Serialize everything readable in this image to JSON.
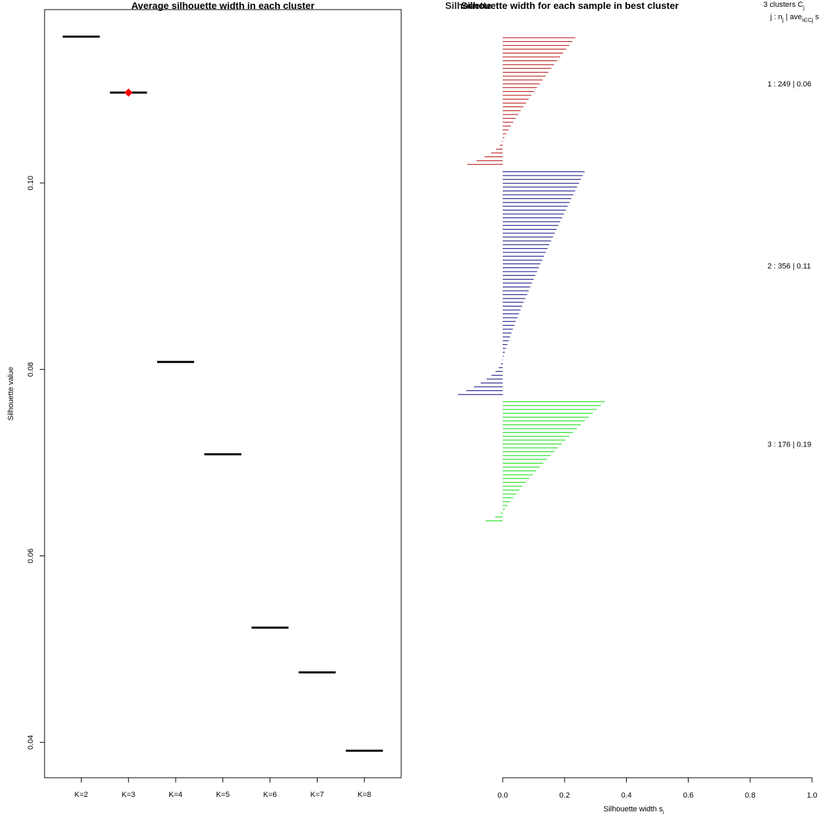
{
  "chart_data": [
    {
      "type": "scatter",
      "title": "Average silhouette width in each cluster",
      "xlabel": "",
      "ylabel": "Silhouette value",
      "ylim": [
        0.0362,
        0.1186
      ],
      "yticks": [
        0.04,
        0.06,
        0.08,
        0.1
      ],
      "ytick_labels": [
        "0.04",
        "0.06",
        "0.08",
        "0.10"
      ],
      "categories": [
        "K=2",
        "K=3",
        "K=4",
        "K=5",
        "K=6",
        "K=7",
        "K=8"
      ],
      "values": [
        0.1157,
        0.1097,
        0.0808,
        0.0709,
        0.0523,
        0.0475,
        0.0391
      ],
      "best_index": 1,
      "best_marker_color": "#ff0000",
      "grid": false
    },
    {
      "type": "bar",
      "orientation": "horizontal",
      "title": "Silhouette width for each sample in best cluster",
      "title_overlap_text": "Silhouette",
      "xlabel": "Silhouette width s",
      "xlabel_sub": "i",
      "xlim": [
        0,
        1
      ],
      "xticks": [
        0.0,
        0.2,
        0.4,
        0.6,
        0.8,
        1.0
      ],
      "xtick_labels": [
        "0.0",
        "0.2",
        "0.4",
        "0.6",
        "0.8",
        "1.0"
      ],
      "legend": {
        "line1": "3  clusters  C",
        "line1_sub": "j",
        "line2_a": "j :  n",
        "line2_a_sub": "j",
        "line2_b": " | ave",
        "line2_b_sub": "i∈Cj",
        "line2_c": "  s"
      },
      "series": [
        {
          "name": "1",
          "n": 249,
          "label": "1 :  249  |  0.06",
          "color": "#b20000",
          "max": 0.235,
          "min": -0.115,
          "n_positive": 27,
          "n_negative": 7
        },
        {
          "name": "2",
          "n": 356,
          "label": "2 :  356  |  0.11",
          "color": "#00007f",
          "max": 0.265,
          "min": -0.145,
          "n_positive": 49,
          "n_negative": 10
        },
        {
          "name": "3",
          "n": 176,
          "label": "3 :  176  |  0.19",
          "color": "#00dd00",
          "max": 0.33,
          "min": -0.055,
          "n_positive": 29,
          "n_negative": 3
        }
      ]
    }
  ]
}
